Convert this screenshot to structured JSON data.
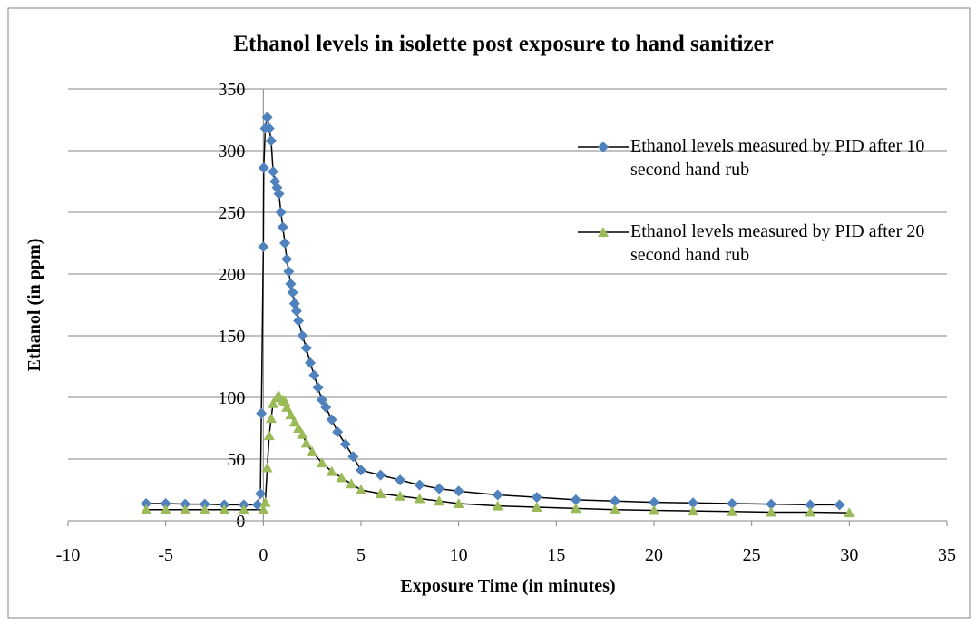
{
  "chart_data": {
    "type": "scatter",
    "title": "Ethanol levels in isolette post exposure to hand sanitizer",
    "x_label": "Exposure Time (in minutes)",
    "y_label": "Ethanol (in ppm)",
    "xlim": [
      -10,
      35
    ],
    "xticks": [
      -10,
      -5,
      0,
      5,
      10,
      15,
      20,
      25,
      30,
      35
    ],
    "ylim": [
      0,
      350
    ],
    "yticks": [
      0,
      50,
      100,
      150,
      200,
      250,
      300,
      350
    ],
    "grid": true,
    "legend": "upper-right",
    "line_color": "#000000",
    "series": [
      {
        "name": "Ethanol levels measured by PID after 10 second hand rub",
        "color": "#4f81bd",
        "marker": "diamond",
        "x": [
          -6,
          -5,
          -4,
          -3,
          -2,
          -1,
          -0.3,
          -0.15,
          -0.1,
          0,
          0.02,
          0.1,
          0.2,
          0.3,
          0.4,
          0.5,
          0.6,
          0.7,
          0.8,
          0.9,
          1.0,
          1.1,
          1.2,
          1.3,
          1.4,
          1.5,
          1.6,
          1.7,
          1.8,
          2.0,
          2.2,
          2.4,
          2.6,
          2.8,
          3.0,
          3.2,
          3.5,
          3.8,
          4.2,
          4.6,
          5.0,
          6,
          7,
          8,
          9,
          10,
          12,
          14,
          16,
          18,
          20,
          22,
          24,
          26,
          28,
          29.5
        ],
        "values": [
          14,
          14,
          13.5,
          13.5,
          13,
          13,
          13,
          22,
          87,
          222,
          286,
          318,
          327,
          318,
          308,
          283,
          275,
          270,
          265,
          250,
          238,
          225,
          212,
          202,
          192,
          185,
          176,
          170,
          162,
          150,
          140,
          128,
          118,
          108,
          98,
          92,
          82,
          72,
          62,
          52,
          41,
          37,
          33,
          29,
          26,
          24,
          21,
          19,
          17,
          16,
          15,
          14.5,
          14,
          13.5,
          13,
          13
        ]
      },
      {
        "name": "Ethanol levels measured by PID after 20 second hand rub",
        "color": "#9bbb59",
        "marker": "triangle",
        "x": [
          -6,
          -5,
          -4,
          -3,
          -2,
          -1,
          0,
          0.1,
          0.2,
          0.3,
          0.4,
          0.5,
          0.7,
          0.8,
          1.0,
          1.1,
          1.2,
          1.4,
          1.6,
          1.8,
          2.0,
          2.2,
          2.5,
          3,
          3.5,
          4,
          4.5,
          5,
          6,
          7,
          8,
          9,
          10,
          12,
          14,
          16,
          18,
          20,
          22,
          24,
          26,
          28,
          30
        ],
        "values": [
          9,
          9,
          9,
          9,
          9,
          9,
          9,
          15,
          43,
          69,
          83,
          95,
          100,
          101,
          98,
          97,
          92,
          86,
          80,
          75,
          70,
          63,
          56,
          47,
          40,
          35,
          30,
          25,
          22,
          20,
          18,
          16,
          14,
          12,
          11,
          10,
          9,
          8.5,
          8,
          7.5,
          7,
          7,
          6.5
        ]
      }
    ]
  }
}
